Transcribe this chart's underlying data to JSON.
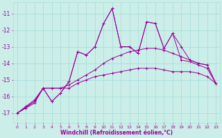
{
  "xlabel": "Windchill (Refroidissement éolien,°C)",
  "background_color": "#cceee8",
  "grid_color": "#aadddd",
  "line_color": "#990099",
  "xlim": [
    -0.5,
    23.5
  ],
  "ylim": [
    -17.6,
    -10.3
  ],
  "yticks": [
    -17,
    -16,
    -15,
    -14,
    -13,
    -12,
    -11
  ],
  "xticks": [
    0,
    1,
    2,
    3,
    4,
    5,
    6,
    7,
    8,
    9,
    10,
    11,
    12,
    13,
    14,
    15,
    16,
    17,
    18,
    19,
    20,
    21,
    22,
    23
  ],
  "lines": [
    {
      "x": [
        0,
        1,
        2,
        3,
        4,
        5,
        6,
        7,
        8,
        9,
        10,
        11,
        12,
        13,
        14,
        15,
        16,
        17,
        18,
        19,
        20,
        21,
        22,
        23
      ],
      "y": [
        -17.0,
        -16.7,
        -16.4,
        -15.5,
        -15.5,
        -15.5,
        -15.5,
        -15.2,
        -15.0,
        -14.8,
        -14.7,
        -14.6,
        -14.5,
        -14.4,
        -14.3,
        -14.3,
        -14.3,
        -14.4,
        -14.5,
        -14.5,
        -14.5,
        -14.6,
        -14.8,
        -15.2
      ]
    },
    {
      "x": [
        0,
        1,
        2,
        3,
        4,
        5,
        6,
        7,
        8,
        9,
        10,
        11,
        12,
        13,
        14,
        15,
        16,
        17,
        18,
        19,
        20,
        21,
        22,
        23
      ],
      "y": [
        -17.0,
        -16.6,
        -16.2,
        -15.5,
        -15.5,
        -15.5,
        -15.3,
        -15.0,
        -14.7,
        -14.4,
        -14.0,
        -13.7,
        -13.5,
        -13.3,
        -13.2,
        -13.1,
        -13.1,
        -13.2,
        -13.4,
        -13.6,
        -13.8,
        -14.0,
        -14.1,
        -15.2
      ]
    },
    {
      "x": [
        0,
        2,
        3,
        4,
        5,
        6,
        7,
        8,
        9,
        10,
        11,
        12,
        13,
        14,
        15,
        16,
        17,
        18,
        19,
        20,
        21,
        22,
        23
      ],
      "y": [
        -17.0,
        -16.3,
        -15.5,
        -16.3,
        -15.8,
        -15.1,
        -13.3,
        -13.5,
        -13.0,
        -11.6,
        -10.7,
        -13.0,
        -13.0,
        -13.4,
        -11.5,
        -11.6,
        -13.1,
        -12.2,
        -13.0,
        -13.8,
        -14.0,
        -14.1,
        -15.2
      ]
    },
    {
      "x": [
        0,
        2,
        3,
        4,
        5,
        6,
        7,
        8,
        9,
        10,
        11,
        12,
        13,
        14,
        15,
        16,
        17,
        18,
        19,
        20,
        21,
        22,
        23
      ],
      "y": [
        -17.0,
        -16.3,
        -15.5,
        -16.3,
        -15.8,
        -15.1,
        -13.3,
        -13.5,
        -13.0,
        -11.6,
        -10.7,
        -13.0,
        -13.0,
        -13.4,
        -11.5,
        -11.6,
        -13.1,
        -12.2,
        -13.8,
        -13.9,
        -14.1,
        -14.3,
        -15.2
      ]
    }
  ]
}
